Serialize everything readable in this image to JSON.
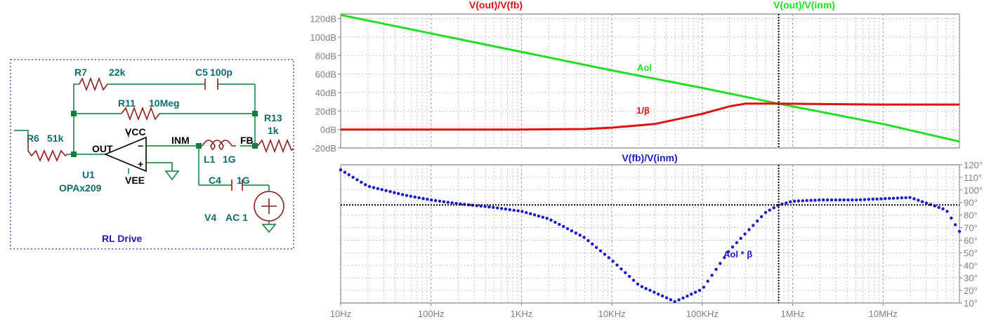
{
  "schematic": {
    "frame_label": "RL Drive",
    "components": {
      "r7": {
        "ref": "R7",
        "value": "22k"
      },
      "c5": {
        "ref": "C5",
        "value": "100p"
      },
      "r11": {
        "ref": "R11",
        "value": "10Meg"
      },
      "r13": {
        "ref": "R13",
        "value": "1k"
      },
      "r6": {
        "ref": "R6",
        "value": "51k"
      },
      "l1": {
        "ref": "L1",
        "value": "1G"
      },
      "c4": {
        "ref": "C4",
        "value": "1G"
      },
      "v4": {
        "ref": "V4",
        "value": "AC 1"
      },
      "u1": {
        "ref": "U1",
        "model": "OPAx209"
      }
    },
    "nets": {
      "out": "OUT",
      "vcc": "VCC",
      "vee": "VEE",
      "inm": "INM",
      "fb": "FB"
    }
  },
  "plot": {
    "mag_pane": {
      "trace_titles": [
        {
          "text": "V(out)/V(fb)",
          "color": "#e01010"
        },
        {
          "text": "V(out)/V(inm)",
          "color": "#22dd22"
        }
      ],
      "y_ticks": [
        "120dB",
        "100dB",
        "80dB",
        "60dB",
        "40dB",
        "20dB",
        "0dB",
        "-20dB"
      ]
    },
    "phase_pane": {
      "trace_titles": [
        {
          "text": "V(fb)/V(inm)",
          "color": "#1a1acc"
        }
      ],
      "y_ticks": [
        "120°",
        "110°",
        "100°",
        "90°",
        "80°",
        "70°",
        "60°",
        "50°",
        "40°",
        "30°",
        "20°",
        "10°"
      ]
    },
    "x_ticks": [
      "10Hz",
      "100Hz",
      "1KHz",
      "10KHz",
      "100KHz",
      "1MHz",
      "10MHz"
    ],
    "annotations": {
      "aol": "Aol",
      "inv_beta": "1/β",
      "loop": "Aol * β"
    }
  },
  "chart_data": {
    "type": "line",
    "xlabel": "",
    "x_scale": "log",
    "xlim": [
      "10Hz",
      "70MHz"
    ],
    "cursor_frequency": "700KHz",
    "magnitude": {
      "ylim": [
        -20,
        125
      ],
      "series": [
        {
          "name": "V(out)/V(inm)",
          "label": "Aol",
          "color": "#22dd22",
          "x": [
            "10Hz",
            "100Hz",
            "1KHz",
            "10KHz",
            "100KHz",
            "700KHz",
            "1MHz",
            "10MHz",
            "70MHz"
          ],
          "y": [
            124,
            104,
            84,
            64,
            45,
            28,
            25,
            6,
            -13
          ]
        },
        {
          "name": "V(out)/V(fb)",
          "label": "1/β",
          "color": "#e01010",
          "x": [
            "10Hz",
            "1KHz",
            "5KHz",
            "10KHz",
            "30KHz",
            "100KHz",
            "200KHz",
            "300KHz",
            "700KHz",
            "10MHz",
            "70MHz"
          ],
          "y": [
            0,
            0,
            0.5,
            2,
            6,
            17,
            25,
            28,
            28,
            27,
            27
          ]
        }
      ]
    },
    "phase": {
      "ylim": [
        10,
        120
      ],
      "cursor_phase": 88,
      "series": [
        {
          "name": "V(fb)/V(inm)",
          "label": "Aol * β",
          "color": "#1a1acc",
          "x": [
            "10Hz",
            "20Hz",
            "50Hz",
            "100Hz",
            "200Hz",
            "500Hz",
            "1KHz",
            "2KHz",
            "5KHz",
            "10KHz",
            "20KHz",
            "50KHz",
            "100KHz",
            "200KHz",
            "500KHz",
            "700KHz",
            "1MHz",
            "2MHz",
            "5MHz",
            "10MHz",
            "20MHz",
            "50MHz",
            "70MHz"
          ],
          "y": [
            116,
            103,
            96,
            92,
            89,
            86,
            83,
            77,
            62,
            44,
            24,
            11,
            21,
            52,
            82,
            88,
            91,
            92,
            92,
            93,
            94,
            84,
            67
          ]
        }
      ]
    }
  }
}
